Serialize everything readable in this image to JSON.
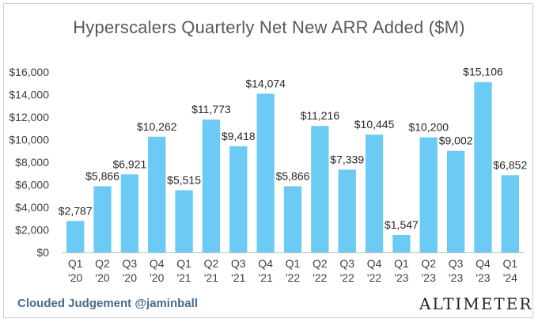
{
  "chart_data": {
    "type": "bar",
    "title": "Hyperscalers Quarterly Net New ARR Added ($M)",
    "xlabel": "",
    "ylabel": "",
    "ylim": [
      0,
      16000
    ],
    "yticks": [
      "$0",
      "$2,000",
      "$4,000",
      "$6,000",
      "$8,000",
      "$10,000",
      "$12,000",
      "$14,000",
      "$16,000"
    ],
    "grid": false,
    "bar_color": "#6ccbf5",
    "categories": [
      {
        "q": "Q1",
        "y": "'20"
      },
      {
        "q": "Q2",
        "y": "'20"
      },
      {
        "q": "Q3",
        "y": "'20"
      },
      {
        "q": "Q4",
        "y": "'20"
      },
      {
        "q": "Q1",
        "y": "'21"
      },
      {
        "q": "Q2",
        "y": "'21"
      },
      {
        "q": "Q3",
        "y": "'21"
      },
      {
        "q": "Q4",
        "y": "'21"
      },
      {
        "q": "Q1",
        "y": "'22"
      },
      {
        "q": "Q2",
        "y": "'22"
      },
      {
        "q": "Q3",
        "y": "'22"
      },
      {
        "q": "Q4",
        "y": "'22"
      },
      {
        "q": "Q1",
        "y": "'23"
      },
      {
        "q": "Q2",
        "y": "'23"
      },
      {
        "q": "Q3",
        "y": "'23"
      },
      {
        "q": "Q4",
        "y": "'23"
      },
      {
        "q": "Q1",
        "y": "'24"
      }
    ],
    "values": [
      2787,
      5866,
      6921,
      10262,
      5515,
      11773,
      9418,
      14074,
      5866,
      11216,
      7339,
      10445,
      1547,
      10200,
      9002,
      15106,
      6852
    ],
    "data_labels": [
      "$2,787",
      "$5,866",
      "$6,921",
      "$10,262",
      "$5,515",
      "$11,773",
      "$9,418",
      "$14,074",
      "$5,866",
      "$11,216",
      "$7,339",
      "$10,445",
      "$1,547",
      "$10,200",
      "$9,002",
      "$15,106",
      "$6,852"
    ]
  },
  "footer": {
    "credit": "Clouded Judgement @jaminball",
    "brand": "ALTIMETER"
  }
}
